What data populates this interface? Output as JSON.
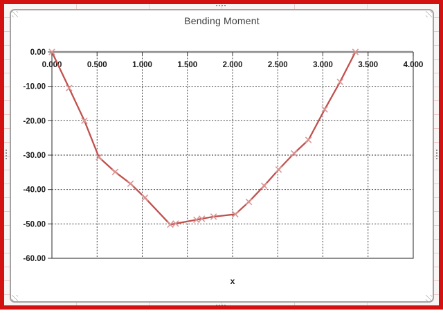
{
  "window": {
    "border_color": "#d41111"
  },
  "worksheet": {
    "background": "#f8f5f4",
    "gridline_color": "#ecc6c4"
  },
  "chart": {
    "title": "Bending Moment",
    "x_axis_title": "x",
    "frame_border_color": "#a3a3a3",
    "background": "#ffffff",
    "gridline_style": "dashed",
    "axis_line_color": "#8a8a8a"
  },
  "chart_data": {
    "type": "line",
    "title": "Bending Moment",
    "xlabel": "x",
    "ylabel": "",
    "xlim": [
      0,
      4
    ],
    "ylim": [
      -60,
      0
    ],
    "grid": "both-dashed",
    "legend": "none",
    "x_ticks": {
      "values": [
        0,
        0.5,
        1.0,
        1.5,
        2.0,
        2.5,
        3.0,
        3.5,
        4.0
      ],
      "labels": [
        "0.000",
        "0.500",
        "1.000",
        "1.500",
        "2.000",
        "2.500",
        "3.000",
        "3.500",
        "4.000"
      ]
    },
    "y_ticks": {
      "values": [
        0,
        -10,
        -20,
        -30,
        -40,
        -50,
        -60
      ],
      "labels": [
        "0.00",
        "-10.00",
        "-20.00",
        "-30.00",
        "-40.00",
        "-50.00",
        "-60.00"
      ]
    },
    "series": [
      {
        "name": "Bending Moment",
        "marker": "x",
        "line_color": "#C0504D",
        "marker_color": "#D99694",
        "points": [
          [
            0.0,
            0.0
          ],
          [
            0.19,
            -10.5
          ],
          [
            0.36,
            -20.0
          ],
          [
            0.52,
            -30.6
          ],
          [
            0.7,
            -34.9
          ],
          [
            0.87,
            -38.3
          ],
          [
            1.03,
            -42.4
          ],
          [
            1.31,
            -50.2
          ],
          [
            1.37,
            -49.9
          ],
          [
            1.6,
            -48.8
          ],
          [
            1.66,
            -48.5
          ],
          [
            1.79,
            -47.9
          ],
          [
            2.03,
            -47.2
          ],
          [
            2.18,
            -43.6
          ],
          [
            2.35,
            -38.9
          ],
          [
            2.51,
            -34.2
          ],
          [
            2.68,
            -29.5
          ],
          [
            2.84,
            -25.6
          ],
          [
            3.02,
            -16.7
          ],
          [
            3.19,
            -8.7
          ],
          [
            3.36,
            0.0
          ]
        ]
      }
    ]
  }
}
